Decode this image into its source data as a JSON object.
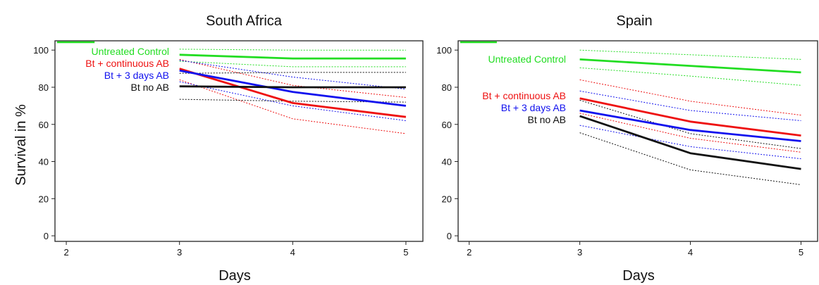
{
  "y_axis_label": "Survival in %",
  "chart_data": [
    {
      "type": "line",
      "title": "South Africa",
      "xlabel": "Days",
      "ylabel": "Survival in %",
      "xlim": [
        1.9,
        5.15
      ],
      "ylim": [
        -3,
        105
      ],
      "xticks": [
        "2",
        "3",
        "4",
        "5"
      ],
      "yticks": [
        "0",
        "20",
        "40",
        "60",
        "80",
        "100"
      ],
      "x": [
        3,
        4,
        5
      ],
      "legend_position": "top-left of plot area",
      "series": [
        {
          "name": "Untreated Control",
          "color": "#22dd22",
          "values": [
            97.5,
            95.5,
            95.5
          ],
          "upper": [
            100.5,
            100,
            100
          ],
          "lower": [
            94,
            91,
            91
          ]
        },
        {
          "name": "Bt + continuous AB",
          "color": "#ee1111",
          "values": [
            90,
            71.5,
            64
          ],
          "upper": [
            95,
            81,
            74.5
          ],
          "lower": [
            84,
            63,
            55
          ]
        },
        {
          "name": "Bt + 3 days AB",
          "color": "#1111ee",
          "values": [
            89,
            77.5,
            70
          ],
          "upper": [
            94.5,
            85.5,
            79
          ],
          "lower": [
            83,
            70,
            62
          ]
        },
        {
          "name": "Bt no AB",
          "color": "#111111",
          "values": [
            80.5,
            80,
            80
          ],
          "upper": [
            87.5,
            88,
            88
          ],
          "lower": [
            73.5,
            72.5,
            72
          ]
        }
      ]
    },
    {
      "type": "line",
      "title": "Spain",
      "xlabel": "Days",
      "ylabel": "",
      "xlim": [
        1.9,
        5.15
      ],
      "ylim": [
        -3,
        105
      ],
      "xticks": [
        "2",
        "3",
        "4",
        "5"
      ],
      "yticks": [
        "0",
        "20",
        "40",
        "60",
        "80",
        "100"
      ],
      "x": [
        3,
        4,
        5
      ],
      "legend_position": "left of plot area, staggered",
      "series": [
        {
          "name": "Untreated Control",
          "color": "#22dd22",
          "values": [
            95,
            91.5,
            88
          ],
          "upper": [
            100,
            97.5,
            95
          ],
          "lower": [
            90.5,
            86,
            81
          ]
        },
        {
          "name": "Bt + continuous AB",
          "color": "#ee1111",
          "values": [
            74,
            61.5,
            54
          ],
          "upper": [
            84,
            72.5,
            65
          ],
          "lower": [
            66,
            52.5,
            45
          ]
        },
        {
          "name": "Bt + 3 days AB",
          "color": "#1111ee",
          "values": [
            67.5,
            57,
            51
          ],
          "upper": [
            78,
            67.5,
            62
          ],
          "lower": [
            59.5,
            48,
            41.5
          ]
        },
        {
          "name": "Bt no AB",
          "color": "#111111",
          "values": [
            64.5,
            44.5,
            36
          ],
          "upper": [
            73,
            55,
            47
          ],
          "lower": [
            55.5,
            35.5,
            27.5
          ]
        }
      ]
    }
  ]
}
